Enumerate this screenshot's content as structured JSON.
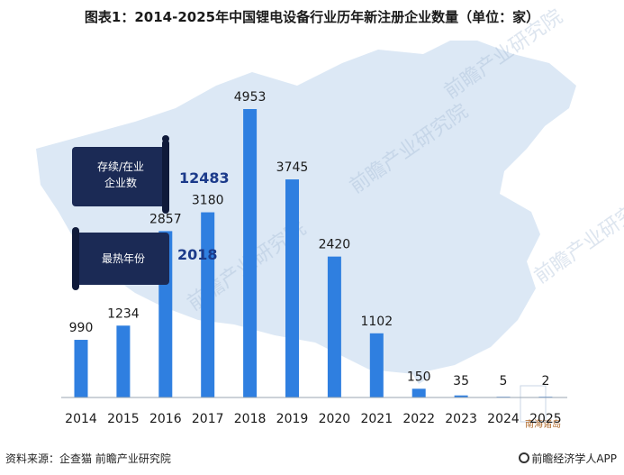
{
  "title": "图表1：2014-2025年中国锂电设备行业历年新注册企业数量（单位：家）",
  "callouts": {
    "existing_label_line1": "存续/在业",
    "existing_label_line2": "企业数",
    "existing_value": "12483",
    "hottest_label": "最热年份",
    "hottest_value": "2018"
  },
  "map_label": "南海诸岛",
  "watermark": "前瞻产业研究院",
  "source": "资料来源：企查猫  前瞻产业研究院",
  "brand": "前瞻经济学人APP",
  "colors": {
    "bar": "#2f7fe0",
    "callout_bg": "#1b2a55",
    "callout_value": "#1b3a8a",
    "map": "#dce8f5"
  },
  "chart_data": {
    "type": "bar",
    "categories": [
      "2014",
      "2015",
      "2016",
      "2017",
      "2018",
      "2019",
      "2020",
      "2021",
      "2022",
      "2023",
      "2024",
      "2025"
    ],
    "values": [
      990,
      1234,
      2857,
      3180,
      4953,
      3745,
      2420,
      1102,
      150,
      35,
      5,
      2
    ],
    "title": "图表1：2014-2025年中国锂电设备行业历年新注册企业数量（单位：家）",
    "xlabel": "",
    "ylabel": "",
    "ylim": [
      0,
      5300
    ],
    "grid": false,
    "legend": "none"
  }
}
